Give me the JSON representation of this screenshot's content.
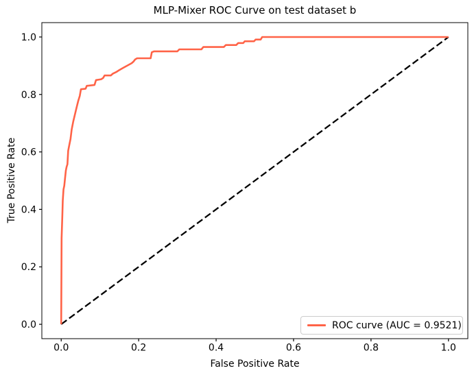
{
  "chart_data": {
    "type": "line",
    "title": "MLP-Mixer ROC Curve on test dataset b",
    "xlabel": "False Positive Rate",
    "ylabel": "True Positive Rate",
    "xlim": [
      -0.05,
      1.05
    ],
    "ylim": [
      -0.05,
      1.05
    ],
    "grid": false,
    "x_ticks": [
      0.0,
      0.2,
      0.4,
      0.6,
      0.8,
      1.0
    ],
    "y_ticks": [
      0.0,
      0.2,
      0.4,
      0.6,
      0.8,
      1.0
    ],
    "x_tick_labels": [
      "0.0",
      "0.2",
      "0.4",
      "0.6",
      "0.8",
      "1.0"
    ],
    "y_tick_labels": [
      "0.0",
      "0.2",
      "0.4",
      "0.6",
      "0.8",
      "1.0"
    ],
    "auc": 0.9521,
    "colors": {
      "roc_curve": "#FF6347",
      "chance_line": "#000000",
      "legend_border": "#cccccc",
      "text": "#000000"
    },
    "legend": {
      "position": "lower right",
      "entries": [
        {
          "label": "ROC curve (AUC = 0.9521)",
          "color": "#FF6347",
          "style": "solid"
        }
      ]
    },
    "series": [
      {
        "id": "chance-diagonal-line",
        "name": "chance diagonal",
        "color": "#000000",
        "linewidth": 2.3,
        "dash": [
          10,
          4.5
        ],
        "points": [
          [
            0.0,
            0.0
          ],
          [
            1.0,
            1.0
          ]
        ]
      },
      {
        "id": "roc-curve-line",
        "name": "ROC curve (AUC = 0.9521)",
        "color": "#FF6347",
        "linewidth": 2.6,
        "dash": null,
        "points": [
          [
            0.0,
            0.0
          ],
          [
            0.001,
            0.3
          ],
          [
            0.003,
            0.38
          ],
          [
            0.004,
            0.43
          ],
          [
            0.006,
            0.47
          ],
          [
            0.008,
            0.482
          ],
          [
            0.01,
            0.51
          ],
          [
            0.012,
            0.535
          ],
          [
            0.014,
            0.548
          ],
          [
            0.016,
            0.557
          ],
          [
            0.018,
            0.604
          ],
          [
            0.021,
            0.625
          ],
          [
            0.024,
            0.645
          ],
          [
            0.027,
            0.678
          ],
          [
            0.031,
            0.705
          ],
          [
            0.035,
            0.728
          ],
          [
            0.04,
            0.756
          ],
          [
            0.044,
            0.778
          ],
          [
            0.048,
            0.795
          ],
          [
            0.051,
            0.818
          ],
          [
            0.063,
            0.82
          ],
          [
            0.066,
            0.83
          ],
          [
            0.086,
            0.833
          ],
          [
            0.09,
            0.85
          ],
          [
            0.103,
            0.853
          ],
          [
            0.108,
            0.857
          ],
          [
            0.112,
            0.866
          ],
          [
            0.128,
            0.866
          ],
          [
            0.133,
            0.872
          ],
          [
            0.142,
            0.878
          ],
          [
            0.15,
            0.885
          ],
          [
            0.158,
            0.891
          ],
          [
            0.166,
            0.897
          ],
          [
            0.174,
            0.903
          ],
          [
            0.182,
            0.909
          ],
          [
            0.187,
            0.915
          ],
          [
            0.191,
            0.922
          ],
          [
            0.196,
            0.926
          ],
          [
            0.231,
            0.926
          ],
          [
            0.234,
            0.947
          ],
          [
            0.24,
            0.95
          ],
          [
            0.3,
            0.95
          ],
          [
            0.305,
            0.957
          ],
          [
            0.362,
            0.957
          ],
          [
            0.367,
            0.965
          ],
          [
            0.42,
            0.965
          ],
          [
            0.425,
            0.972
          ],
          [
            0.452,
            0.972
          ],
          [
            0.457,
            0.979
          ],
          [
            0.47,
            0.979
          ],
          [
            0.474,
            0.985
          ],
          [
            0.498,
            0.985
          ],
          [
            0.502,
            0.991
          ],
          [
            0.515,
            0.991
          ],
          [
            0.519,
            1.0
          ],
          [
            1.0,
            1.0
          ]
        ]
      }
    ]
  }
}
